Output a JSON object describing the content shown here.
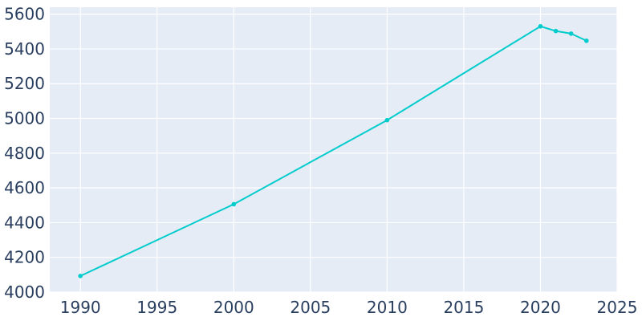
{
  "chart_data": {
    "type": "line",
    "title": "",
    "xlabel": "",
    "ylabel": "",
    "xlim": [
      1988,
      2025
    ],
    "ylim": [
      4000,
      5640
    ],
    "x_ticks": [
      1990,
      1995,
      2000,
      2005,
      2010,
      2015,
      2020,
      2025
    ],
    "y_ticks": [
      4000,
      4200,
      4400,
      4600,
      4800,
      5000,
      5200,
      5400,
      5600
    ],
    "grid": true,
    "legend": "none",
    "series": [
      {
        "color": "#00cccc",
        "x": [
          1990,
          2000,
          2010,
          2020,
          2021,
          2022,
          2023
        ],
        "y": [
          4093,
          4506,
          4990,
          5530,
          5503,
          5488,
          5447
        ]
      }
    ]
  },
  "colors": {
    "plot_background": "#e5ecf6",
    "grid": "#ffffff",
    "tick_text": "#2a3f5f"
  }
}
